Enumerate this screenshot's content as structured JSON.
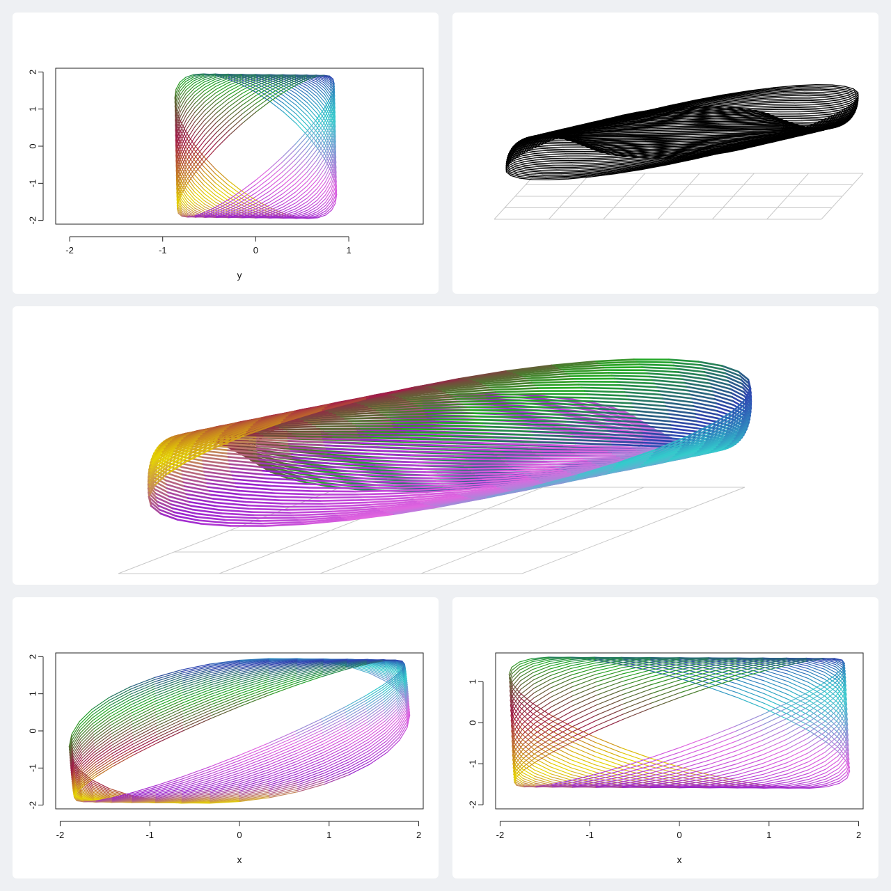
{
  "chart_data": [
    {
      "type": "line",
      "id": "top-left",
      "title": "",
      "xlabel": "y",
      "ylabel": "",
      "xlim": [
        -2.15,
        1.8
      ],
      "ylim": [
        -2.1,
        2.1
      ],
      "xticks": [
        "-2",
        "-1",
        "0",
        "1"
      ],
      "yticks": [
        "2",
        "1",
        "0",
        "-1",
        "-2"
      ],
      "x": [
        -2,
        -1,
        0,
        1
      ],
      "xtick_values": [
        -2,
        -1,
        0,
        1
      ],
      "ytick_values": [
        2,
        1,
        0,
        -1,
        -2
      ],
      "curve": {
        "a": 0.87,
        "b": 1.95,
        "phase_start": 2.3,
        "phase_end": 0.5,
        "ellipses": 26,
        "direction": "y-vs-x-lag"
      },
      "grid": false,
      "legend": "none"
    },
    {
      "type": "line",
      "id": "bottom-left",
      "title": "",
      "xlabel": "x",
      "ylabel": "",
      "xlim": [
        -2.05,
        2.05
      ],
      "ylim": [
        -2.1,
        2.1
      ],
      "xticks": [
        "-2",
        "-1",
        "0",
        "1",
        "2"
      ],
      "yticks": [
        "2",
        "1",
        "0",
        "-1",
        "-2"
      ],
      "xtick_values": [
        -2,
        -1,
        0,
        1,
        2
      ],
      "ytick_values": [
        2,
        1,
        0,
        -1,
        -2
      ],
      "curve": {
        "a": 1.9,
        "b": 1.95,
        "phase_start": 1.35,
        "phase_end": 0.35,
        "ellipses": 26
      },
      "grid": false,
      "legend": "none"
    },
    {
      "type": "line",
      "id": "bottom-right",
      "title": "",
      "xlabel": "x",
      "ylabel": "",
      "xlim": [
        -2.05,
        2.05
      ],
      "ylim": [
        -2.1,
        1.7
      ],
      "xticks": [
        "-2",
        "-1",
        "0",
        "1",
        "2"
      ],
      "yticks": [
        "1",
        "0",
        "-1",
        "-2"
      ],
      "xtick_values": [
        -2,
        -1,
        0,
        1,
        2
      ],
      "ytick_values": [
        1,
        0,
        -1,
        -2
      ],
      "curve": {
        "a": 1.9,
        "b": 1.6,
        "phase_start": 2.4,
        "phase_end": 0.4,
        "ellipses": 26
      },
      "grid": false,
      "legend": "none"
    },
    {
      "type": "line",
      "id": "top-right-3d",
      "title": "",
      "color": "#000000",
      "grid": true,
      "legend": "none"
    },
    {
      "type": "line",
      "id": "middle-3d",
      "title": "",
      "grid": true,
      "legend": "none"
    }
  ],
  "colors": {
    "panel_bg": "#ffffff",
    "page_bg": "#eef0f3",
    "axis": "#222222",
    "floor_grid": "#c8c8c8",
    "palette": [
      "#e066e0",
      "#33cccc",
      "#2e3fb0",
      "#22aa22",
      "#a01a4a",
      "#e6d600",
      "#9922cc"
    ]
  }
}
